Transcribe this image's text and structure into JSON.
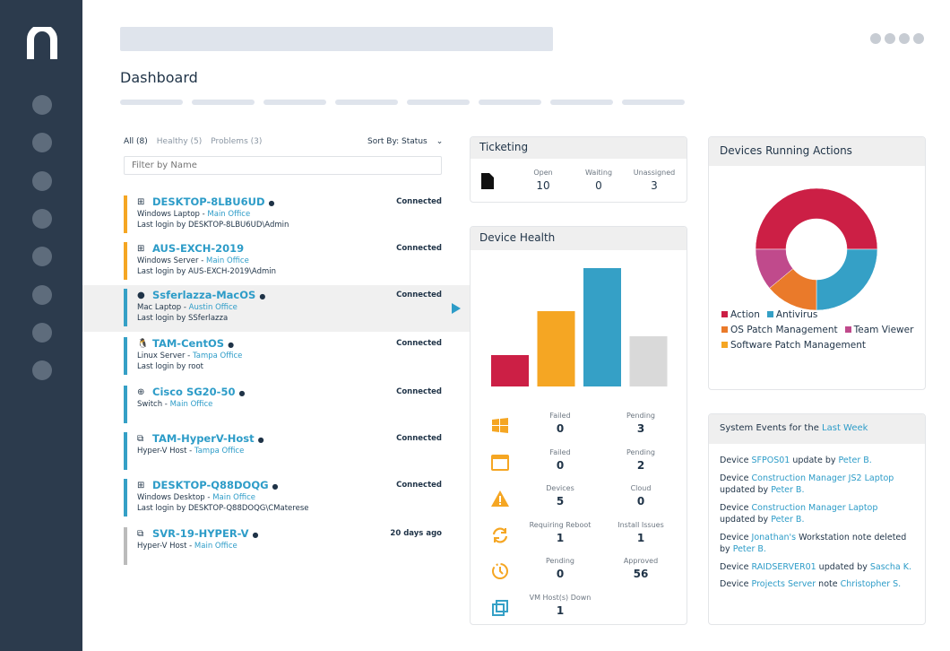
{
  "page": {
    "title": "Dashboard"
  },
  "list": {
    "filters": [
      {
        "label": "All (8)"
      },
      {
        "label": "Healthy (5)"
      },
      {
        "label": "Problems (3)"
      }
    ],
    "sort_label": "Sort By: Status",
    "filter_placeholder": "Filter by Name",
    "devices": [
      {
        "name": "DESKTOP-8LBU6UD",
        "type": "Windows Laptop",
        "sep": " - ",
        "site": "Main Office",
        "login": "Last login by DESKTOP-8LBU6UD\\Admin",
        "status": "Connected",
        "color": "#f5a623",
        "os": "windows",
        "info": true
      },
      {
        "name": "AUS-EXCH-2019",
        "type": "Windows Server",
        "sep": " - ",
        "site": "Main Office",
        "login": "Last login by AUS-EXCH-2019\\Admin",
        "status": "Connected",
        "color": "#f5a623",
        "os": "windows",
        "info": false
      },
      {
        "name": "Ssferlazza-MacOS",
        "type": "Mac Laptop",
        "sep": " - ",
        "site": "Austin Office",
        "login": "Last login by SSferlazza",
        "status": "Connected",
        "color": "#35a0c6",
        "os": "apple",
        "info": true
      },
      {
        "name": "TAM-CentOS",
        "type": "Linux Server",
        "sep": " - ",
        "site": "Tampa Office",
        "login": "Last login by root",
        "status": "Connected",
        "color": "#35a0c6",
        "os": "linux",
        "info": true
      },
      {
        "name": "Cisco SG20-50",
        "type": "Switch",
        "sep": " - ",
        "site": "Main Office",
        "login": "",
        "status": "Connected",
        "color": "#35a0c6",
        "os": "network",
        "info": true
      },
      {
        "name": "TAM-HyperV-Host",
        "type": "Hyper-V Host",
        "sep": " - ",
        "site": "Tampa Office",
        "login": "",
        "status": "Connected",
        "color": "#35a0c6",
        "os": "hyperv",
        "info": true
      },
      {
        "name": "DESKTOP-Q88DOQG",
        "type": "Windows Desktop",
        "sep": " - ",
        "site": "Main Office",
        "login": "Last login by DESKTOP-Q88DOQG\\CMaterese",
        "status": "Connected",
        "color": "#35a0c6",
        "os": "windows",
        "info": true
      },
      {
        "name": "SVR-19-HYPER-V",
        "type": "Hyper-V Host",
        "sep": " - ",
        "site": "Main Office",
        "login": "",
        "status": "20 days ago",
        "color": "#bbbbbb",
        "os": "hyperv",
        "info": true
      }
    ]
  },
  "ticketing": {
    "title": "Ticketing",
    "icon": "document-icon",
    "stats": [
      {
        "label": "Open",
        "value": "10"
      },
      {
        "label": "Waiting",
        "value": "0"
      },
      {
        "label": "Unassigned",
        "value": "3"
      }
    ]
  },
  "health": {
    "title": "Device Health",
    "rows": [
      {
        "icon": "windows-icon",
        "a": {
          "label": "Failed",
          "value": "0"
        },
        "b": {
          "label": "Pending",
          "value": "3"
        }
      },
      {
        "icon": "window-icon",
        "a": {
          "label": "Failed",
          "value": "0"
        },
        "b": {
          "label": "Pending",
          "value": "2"
        }
      },
      {
        "icon": "warning-icon",
        "a": {
          "label": "Devices",
          "value": "5"
        },
        "b": {
          "label": "Cloud",
          "value": "0"
        }
      },
      {
        "icon": "refresh-icon",
        "a": {
          "label": "Requiring Reboot",
          "value": "1"
        },
        "b": {
          "label": "Install Issues",
          "value": "1"
        }
      },
      {
        "icon": "clock-icon",
        "a": {
          "label": "Pending",
          "value": "0"
        },
        "b": {
          "label": "Approved",
          "value": "56"
        }
      },
      {
        "icon": "vm-icon",
        "a": {
          "label": "VM Host(s) Down",
          "value": "1"
        }
      }
    ]
  },
  "chart_data": [
    {
      "type": "bar",
      "categories": [
        "",
        "",
        "",
        ""
      ],
      "values": [
        35,
        84,
        132,
        56
      ],
      "colors": [
        "#cc1f45",
        "#f5a623",
        "#35a0c6",
        "#d9d9d9"
      ]
    },
    {
      "type": "pie",
      "title": "Devices Running Actions",
      "labels": [
        "Action",
        "Antivirus",
        "OS Patch Management",
        "Team Viewer",
        "Software Patch Management"
      ],
      "values": [
        50,
        25,
        14,
        11,
        0
      ],
      "colors": [
        "#cc1f45",
        "#35a0c6",
        "#ea7a2a",
        "#c04a8c",
        "#f5a623"
      ]
    }
  ],
  "events": {
    "title_prefix": "System Events for the ",
    "title_link": "Last Week",
    "items": [
      [
        [
          "Device ",
          0
        ],
        [
          "SFPOS01",
          1
        ],
        [
          " update by ",
          0
        ],
        [
          "Peter B.",
          1
        ]
      ],
      [
        [
          "Device ",
          0
        ],
        [
          "Construction Manager JS2 Laptop",
          1
        ],
        [
          " updated by ",
          0
        ],
        [
          "Peter B.",
          1
        ]
      ],
      [
        [
          "Device ",
          0
        ],
        [
          "Construction Manager Laptop",
          1
        ],
        [
          " updated by ",
          0
        ],
        [
          "Peter B.",
          1
        ]
      ],
      [
        [
          "Device ",
          0
        ],
        [
          "Jonathan's",
          1
        ],
        [
          " Workstation note deleted by ",
          0
        ],
        [
          "Peter B.",
          1
        ]
      ],
      [
        [
          "Device ",
          0
        ],
        [
          "RAIDSERVER01",
          1
        ],
        [
          " updated by ",
          0
        ],
        [
          "Sascha K.",
          1
        ]
      ],
      [
        [
          "Device ",
          0
        ],
        [
          "Projects Server",
          1
        ],
        [
          " note ",
          0
        ],
        [
          "Christopher S.",
          1
        ]
      ]
    ]
  }
}
